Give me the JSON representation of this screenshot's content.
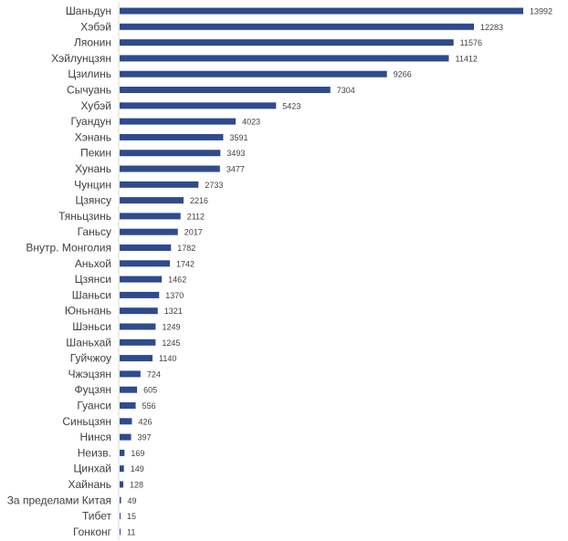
{
  "colors": {
    "bar": "#2f4b8d",
    "axis": "#d9d9d9",
    "text": "#404040"
  },
  "chart_data": {
    "type": "bar",
    "orientation": "horizontal",
    "categories": [
      "Шаньдун",
      "Хэбэй",
      "Ляонин",
      "Хэйлунцзян",
      "Цзилинь",
      "Сычуань",
      "Хубэй",
      "Гуандун",
      "Хэнань",
      "Пекин",
      "Хунань",
      "Чунцин",
      "Цзянсу",
      "Тяньцзинь",
      "Ганьсу",
      "Внутр. Монголия",
      "Аньхой",
      "Цзянси",
      "Шаньси",
      "Юньнань",
      "Шэньси",
      "Шаньхай",
      "Гуйчжоу",
      "Чжэцзян",
      "Фуцзян",
      "Гуанси",
      "Синьцзян",
      "Нинся",
      "Неизв.",
      "Цинхай",
      "Хайнань",
      "За пределами Китая",
      "Тибет",
      "Гонконг"
    ],
    "values": [
      13992,
      12283,
      11576,
      11412,
      9266,
      7304,
      5423,
      4023,
      3591,
      3493,
      3477,
      2733,
      2216,
      2112,
      2017,
      1782,
      1742,
      1462,
      1370,
      1321,
      1249,
      1245,
      1140,
      724,
      605,
      556,
      426,
      397,
      169,
      149,
      128,
      49,
      15,
      11
    ],
    "xlim": [
      0,
      14000
    ],
    "grid": false,
    "legend": "none"
  }
}
